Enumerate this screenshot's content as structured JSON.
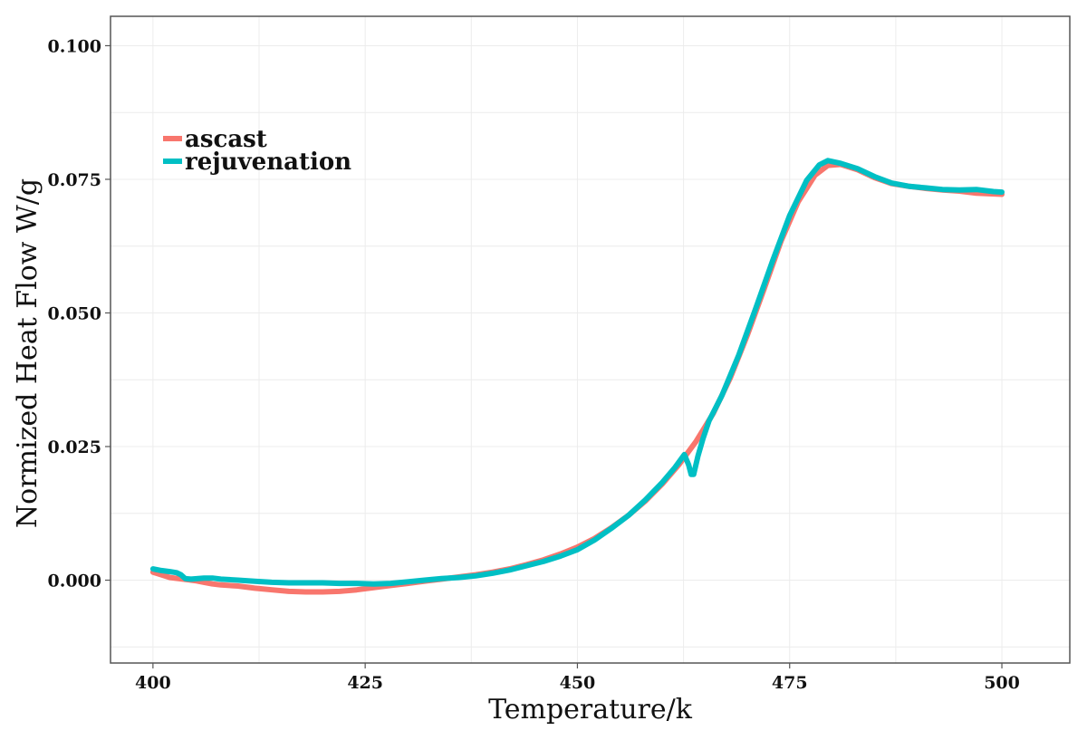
{
  "chart_data": {
    "type": "line",
    "title": "",
    "xlabel": "Temperature/k",
    "ylabel": "Normized Heat Flow W/g",
    "xlim": [
      395,
      508
    ],
    "ylim": [
      -0.0155,
      0.1055
    ],
    "xticks": [
      400,
      425,
      450,
      475,
      500
    ],
    "yticks": [
      0.0,
      0.025,
      0.05,
      0.075,
      0.1
    ],
    "ytick_labels": [
      "0.000",
      "0.025",
      "0.050",
      "0.075",
      "0.100"
    ],
    "grid": true,
    "legend_position": "top-left",
    "series": [
      {
        "name": "ascast",
        "color": "#F8766D",
        "points": [
          [
            400,
            0.0015
          ],
          [
            401,
            0.001
          ],
          [
            402,
            0.0005
          ],
          [
            403,
            0.0003
          ],
          [
            404,
            0.0001
          ],
          [
            405,
            -0.0001
          ],
          [
            406,
            -0.0004
          ],
          [
            407,
            -0.0007
          ],
          [
            408,
            -0.0009
          ],
          [
            410,
            -0.0011
          ],
          [
            412,
            -0.0015
          ],
          [
            414,
            -0.0018
          ],
          [
            416,
            -0.0021
          ],
          [
            418,
            -0.0022
          ],
          [
            420,
            -0.0022
          ],
          [
            422,
            -0.0021
          ],
          [
            424,
            -0.0018
          ],
          [
            426,
            -0.0014
          ],
          [
            428,
            -0.001
          ],
          [
            430,
            -0.0006
          ],
          [
            432,
            -0.0002
          ],
          [
            434,
            0.0002
          ],
          [
            436,
            0.0006
          ],
          [
            438,
            0.001
          ],
          [
            440,
            0.0015
          ],
          [
            442,
            0.0021
          ],
          [
            444,
            0.0029
          ],
          [
            446,
            0.0038
          ],
          [
            448,
            0.0049
          ],
          [
            450,
            0.0062
          ],
          [
            452,
            0.0078
          ],
          [
            454,
            0.0098
          ],
          [
            456,
            0.0121
          ],
          [
            458,
            0.0148
          ],
          [
            460,
            0.018
          ],
          [
            462,
            0.0217
          ],
          [
            464,
            0.026
          ],
          [
            466,
            0.0312
          ],
          [
            468,
            0.0378
          ],
          [
            470,
            0.0458
          ],
          [
            472,
            0.0545
          ],
          [
            474,
            0.0635
          ],
          [
            476,
            0.0708
          ],
          [
            478,
            0.0758
          ],
          [
            479.5,
            0.0776
          ],
          [
            481,
            0.0778
          ],
          [
            483,
            0.0768
          ],
          [
            485,
            0.0753
          ],
          [
            487,
            0.0742
          ],
          [
            489,
            0.0737
          ],
          [
            491,
            0.0733
          ],
          [
            493,
            0.073
          ],
          [
            495,
            0.0728
          ],
          [
            497,
            0.0724
          ],
          [
            500,
            0.0722
          ]
        ]
      },
      {
        "name": "rejuvenation",
        "color": "#00BFC4",
        "points": [
          [
            400,
            0.0021
          ],
          [
            401,
            0.0018
          ],
          [
            402,
            0.0016
          ],
          [
            402.8,
            0.0014
          ],
          [
            403.3,
            0.001
          ],
          [
            403.8,
            0.0003
          ],
          [
            404.5,
            0.0002
          ],
          [
            406,
            0.0004
          ],
          [
            407,
            0.0004
          ],
          [
            408,
            0.0002
          ],
          [
            410,
            0.0
          ],
          [
            412,
            -0.0002
          ],
          [
            414,
            -0.0004
          ],
          [
            416,
            -0.0005
          ],
          [
            418,
            -0.0005
          ],
          [
            420,
            -0.0005
          ],
          [
            422,
            -0.0006
          ],
          [
            424,
            -0.0006
          ],
          [
            426,
            -0.0007
          ],
          [
            428,
            -0.0006
          ],
          [
            430,
            -0.0003
          ],
          [
            432,
            0.0
          ],
          [
            434,
            0.0003
          ],
          [
            436,
            0.0005
          ],
          [
            438,
            0.0008
          ],
          [
            440,
            0.0013
          ],
          [
            442,
            0.0019
          ],
          [
            444,
            0.0027
          ],
          [
            446,
            0.0035
          ],
          [
            448,
            0.0045
          ],
          [
            450,
            0.0057
          ],
          [
            452,
            0.0075
          ],
          [
            454,
            0.0097
          ],
          [
            456,
            0.0121
          ],
          [
            458,
            0.015
          ],
          [
            460,
            0.0183
          ],
          [
            461.5,
            0.0211
          ],
          [
            462.6,
            0.0235
          ],
          [
            463.1,
            0.0216
          ],
          [
            463.4,
            0.0198
          ],
          [
            463.7,
            0.0198
          ],
          [
            464.2,
            0.0232
          ],
          [
            464.8,
            0.0265
          ],
          [
            465.5,
            0.0298
          ],
          [
            467,
            0.0345
          ],
          [
            469,
            0.0421
          ],
          [
            471,
            0.0508
          ],
          [
            473,
            0.0598
          ],
          [
            475,
            0.0682
          ],
          [
            477,
            0.0748
          ],
          [
            478.5,
            0.0777
          ],
          [
            479.5,
            0.0785
          ],
          [
            481,
            0.078
          ],
          [
            483,
            0.077
          ],
          [
            485,
            0.0755
          ],
          [
            487,
            0.0743
          ],
          [
            489,
            0.0737
          ],
          [
            491,
            0.0734
          ],
          [
            493,
            0.0731
          ],
          [
            495,
            0.073
          ],
          [
            497,
            0.0731
          ],
          [
            499,
            0.0727
          ],
          [
            500,
            0.0726
          ]
        ]
      }
    ]
  }
}
